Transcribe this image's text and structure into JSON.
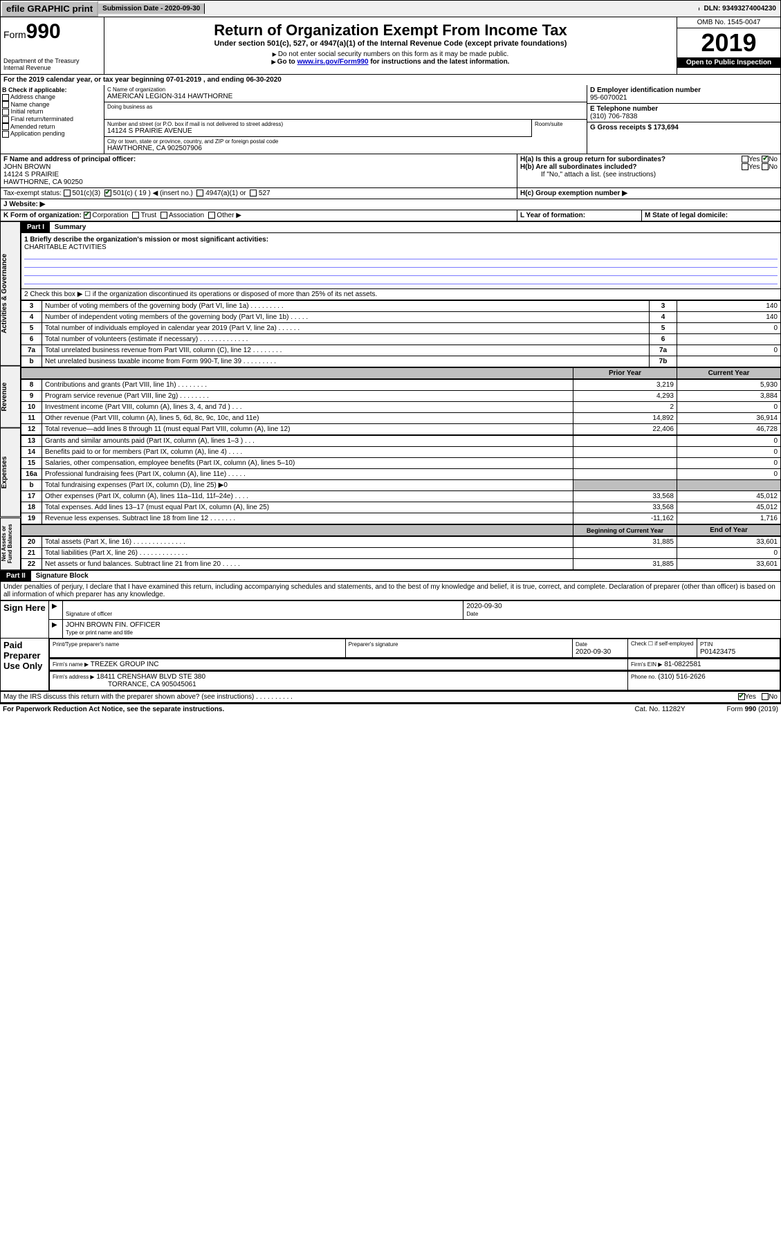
{
  "top": {
    "efile": "efile GRAPHIC print",
    "sub_label": "Submission Date - 2020-09-30",
    "dln": "DLN: 93493274004230"
  },
  "header": {
    "form": "Form",
    "form_no": "990",
    "dept": "Department of the Treasury Internal Revenue",
    "title": "Return of Organization Exempt From Income Tax",
    "subtitle": "Under section 501(c), 527, or 4947(a)(1) of the Internal Revenue Code (except private foundations)",
    "note1": "Do not enter social security numbers on this form as it may be made public.",
    "note2": "Go to www.irs.gov/Form990 for instructions and the latest information.",
    "omb": "OMB No. 1545-0047",
    "year": "2019",
    "open": "Open to Public Inspection"
  },
  "period": "For the 2019 calendar year, or tax year beginning 07-01-2019   , and ending 06-30-2020",
  "boxB": {
    "label": "B Check if applicable:",
    "items": [
      "Address change",
      "Name change",
      "Initial return",
      "Final return/terminated",
      "Amended return",
      "Application pending"
    ]
  },
  "boxC": {
    "name_label": "C Name of organization",
    "name": "AMERICAN LEGION-314 HAWTHORNE",
    "dba_label": "Doing business as",
    "addr_label": "Number and street (or P.O. box if mail is not delivered to street address)",
    "addr": "14124 S PRAIRIE AVENUE",
    "room_label": "Room/suite",
    "city_label": "City or town, state or province, country, and ZIP or foreign postal code",
    "city": "HAWTHORNE, CA  902507906"
  },
  "boxD": {
    "label": "D Employer identification number",
    "val": "95-6070021"
  },
  "boxE": {
    "label": "E Telephone number",
    "val": "(310) 706-7838"
  },
  "boxG": {
    "label": "G Gross receipts $ 173,694"
  },
  "boxF": {
    "label": "F  Name and address of principal officer:",
    "name": "JOHN BROWN",
    "addr1": "14124 S PRAIRIE",
    "addr2": "HAWTHORNE, CA  90250"
  },
  "boxH": {
    "a": "H(a)  Is this a group return for subordinates?",
    "b": "H(b)  Are all subordinates included?",
    "note": "If \"No,\" attach a list. (see instructions)",
    "c": "H(c)  Group exemption number ▶"
  },
  "taxstatus": "Tax-exempt status:",
  "status_opts": [
    "501(c)(3)",
    "501(c) ( 19 ) ◀ (insert no.)",
    "4947(a)(1) or",
    "527"
  ],
  "website_label": "J    Website: ▶",
  "boxK": "K Form of organization:",
  "k_opts": [
    "Corporation",
    "Trust",
    "Association",
    "Other ▶"
  ],
  "boxL": "L Year of formation:",
  "boxM": "M State of legal domicile:",
  "part1": {
    "header": "Part I",
    "title": "Summary",
    "q1": "1  Briefly describe the organization's mission or most significant activities:",
    "q1_ans": "CHARITABLE ACTIVITIES",
    "q2": "2    Check this box ▶ ☐  if the organization discontinued its operations or disposed of more than 25% of its net assets.",
    "rows_gov": [
      {
        "n": "3",
        "t": "Number of voting members of the governing body (Part VI, line 1a)   .    .    .    .    .    .    .    .    .",
        "b": "3",
        "v": "140"
      },
      {
        "n": "4",
        "t": "Number of independent voting members of the governing body (Part VI, line 1b)  .    .    .    .    .",
        "b": "4",
        "v": "140"
      },
      {
        "n": "5",
        "t": "Total number of individuals employed in calendar year 2019 (Part V, line 2a)   .    .    .    .    .    .",
        "b": "5",
        "v": "0"
      },
      {
        "n": "6",
        "t": "Total number of volunteers (estimate if necessary)   .    .    .    .    .    .    .    .    .    .    .    .    .",
        "b": "6",
        "v": ""
      },
      {
        "n": "7a",
        "t": "Total unrelated business revenue from Part VIII, column (C), line 12   .    .    .    .    .    .    .    .",
        "b": "7a",
        "v": "0"
      },
      {
        "n": "b",
        "t": "Net unrelated business taxable income from Form 990-T, line 39   .    .    .    .    .    .    .    .    .",
        "b": "7b",
        "v": ""
      }
    ],
    "col_headers": {
      "prior": "Prior Year",
      "current": "Current Year"
    },
    "rows_rev": [
      {
        "n": "8",
        "t": "Contributions and grants (Part VIII, line 1h)   .    .    .    .    .    .    .    .",
        "p": "3,219",
        "c": "5,930"
      },
      {
        "n": "9",
        "t": "Program service revenue (Part VIII, line 2g)   .    .    .    .    .    .    .    .",
        "p": "4,293",
        "c": "3,884"
      },
      {
        "n": "10",
        "t": "Investment income (Part VIII, column (A), lines 3, 4, and 7d )   .    .    .",
        "p": "2",
        "c": "0"
      },
      {
        "n": "11",
        "t": "Other revenue (Part VIII, column (A), lines 5, 6d, 8c, 9c, 10c, and 11e)",
        "p": "14,892",
        "c": "36,914"
      },
      {
        "n": "12",
        "t": "Total revenue—add lines 8 through 11 (must equal Part VIII, column (A), line 12)",
        "p": "22,406",
        "c": "46,728"
      }
    ],
    "rows_exp": [
      {
        "n": "13",
        "t": "Grants and similar amounts paid (Part IX, column (A), lines 1–3 )   .    .    .",
        "p": "",
        "c": "0"
      },
      {
        "n": "14",
        "t": "Benefits paid to or for members (Part IX, column (A), line 4)   .    .    .    .",
        "p": "",
        "c": "0"
      },
      {
        "n": "15",
        "t": "Salaries, other compensation, employee benefits (Part IX, column (A), lines 5–10)",
        "p": "",
        "c": "0"
      },
      {
        "n": "16a",
        "t": "Professional fundraising fees (Part IX, column (A), line 11e)   .    .    .    .    .",
        "p": "",
        "c": "0"
      },
      {
        "n": "b",
        "t": "Total fundraising expenses (Part IX, column (D), line 25) ▶0",
        "p": "shaded",
        "c": "shaded"
      },
      {
        "n": "17",
        "t": "Other expenses (Part IX, column (A), lines 11a–11d, 11f–24e)   .    .    .    .",
        "p": "33,568",
        "c": "45,012"
      },
      {
        "n": "18",
        "t": "Total expenses. Add lines 13–17 (must equal Part IX, column (A), line 25)",
        "p": "33,568",
        "c": "45,012"
      },
      {
        "n": "19",
        "t": "Revenue less expenses. Subtract line 18 from line 12   .    .    .    .    .    .    .",
        "p": "-11,162",
        "c": "1,716"
      }
    ],
    "col_headers2": {
      "prior": "Beginning of Current Year",
      "current": "End of Year"
    },
    "rows_net": [
      {
        "n": "20",
        "t": "Total assets (Part X, line 16)   .    .    .    .    .    .    .    .    .    .    .    .    .    .",
        "p": "31,885",
        "c": "33,601"
      },
      {
        "n": "21",
        "t": "Total liabilities (Part X, line 26)   .    .    .    .    .    .    .    .    .    .    .    .    .",
        "p": "",
        "c": "0"
      },
      {
        "n": "22",
        "t": "Net assets or fund balances. Subtract line 21 from line 20   .    .    .    .    .",
        "p": "31,885",
        "c": "33,601"
      }
    ]
  },
  "part2": {
    "header": "Part II",
    "title": "Signature Block",
    "decl": "Under penalties of perjury, I declare that I have examined this return, including accompanying schedules and statements, and to the best of my knowledge and belief, it is true, correct, and complete. Declaration of preparer (other than officer) is based on all information of which preparer has any knowledge.",
    "sign_here": "Sign Here",
    "sig_officer": "Signature of officer",
    "sig_date": "2020-09-30",
    "date_label": "Date",
    "officer_name": "JOHN BROWN  FIN. OFFICER",
    "type_name": "Type or print name and title",
    "paid": "Paid Preparer Use Only",
    "prep_name_label": "Print/Type preparer's name",
    "prep_sig_label": "Preparer's signature",
    "prep_date_label": "Date",
    "prep_date": "2020-09-30",
    "check_se": "Check ☐ if self-employed",
    "ptin_label": "PTIN",
    "ptin": "P01423475",
    "firm_name_label": "Firm's name    ▶",
    "firm_name": "TREZEK GROUP INC",
    "firm_ein_label": "Firm's EIN ▶",
    "firm_ein": "81-0822581",
    "firm_addr_label": "Firm's address ▶",
    "firm_addr": "18411 CRENSHAW BLVD STE 380",
    "firm_city": "TORRANCE, CA  905045061",
    "phone_label": "Phone no.",
    "phone": "(310) 516-2626",
    "discuss": "May the IRS discuss this return with the preparer shown above? (see instructions)    .    .    .    .    .    .    .    .    .    .",
    "footer1": "For Paperwork Reduction Act Notice, see the separate instructions.",
    "footer2": "Cat. No. 11282Y",
    "footer3": "Form 990 (2019)"
  }
}
